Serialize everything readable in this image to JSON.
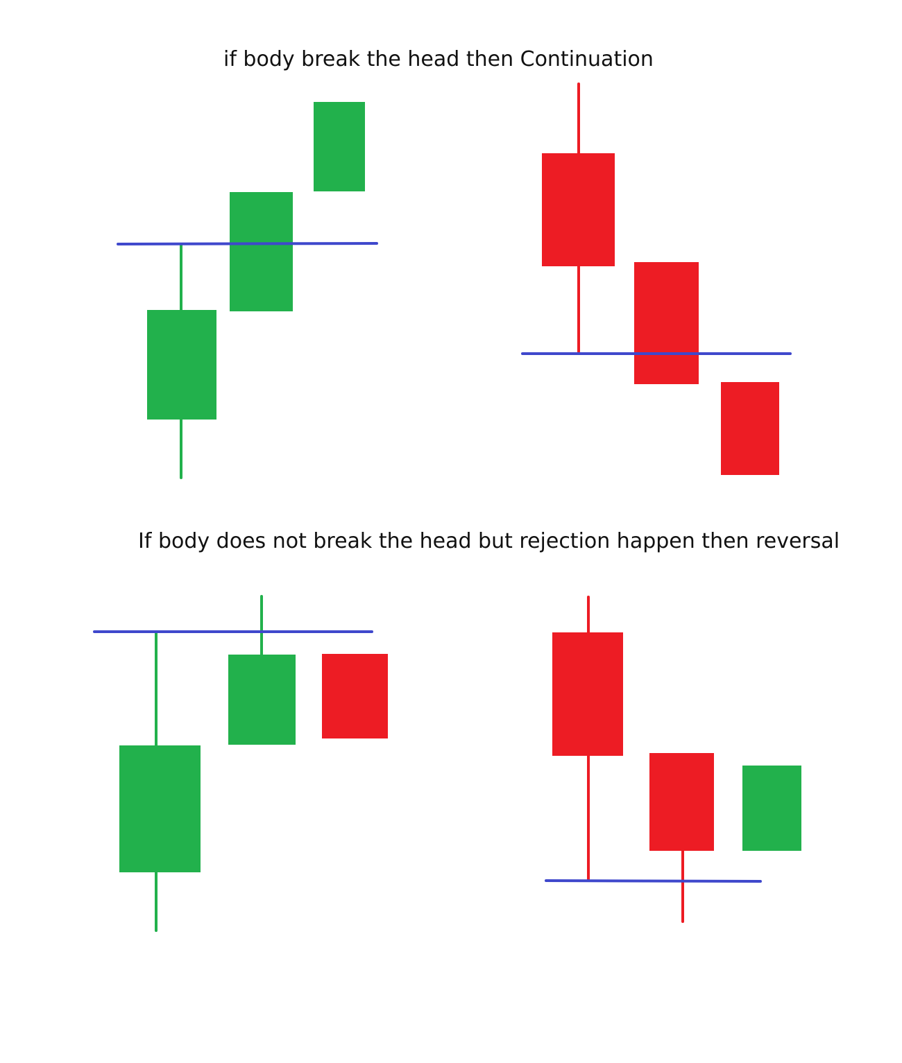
{
  "captions": {
    "top": "if body break the head then Continuation",
    "bottom": "If body does not break the head but rejection happen then reversal"
  },
  "colors": {
    "bullish": "#22b14c",
    "bearish": "#ed1c24",
    "level_line": "#3f48cc",
    "background": "#ffffff"
  },
  "panels": [
    {
      "id": "continuation-bullish",
      "candles": [
        {
          "direction": "bullish"
        },
        {
          "direction": "bullish"
        },
        {
          "direction": "bullish"
        }
      ]
    },
    {
      "id": "continuation-bearish",
      "candles": [
        {
          "direction": "bearish"
        },
        {
          "direction": "bearish"
        },
        {
          "direction": "bearish"
        }
      ]
    },
    {
      "id": "reversal-top",
      "candles": [
        {
          "direction": "bullish"
        },
        {
          "direction": "bullish"
        },
        {
          "direction": "bearish"
        }
      ]
    },
    {
      "id": "reversal-bottom",
      "candles": [
        {
          "direction": "bearish"
        },
        {
          "direction": "bearish"
        },
        {
          "direction": "bullish"
        }
      ]
    }
  ]
}
